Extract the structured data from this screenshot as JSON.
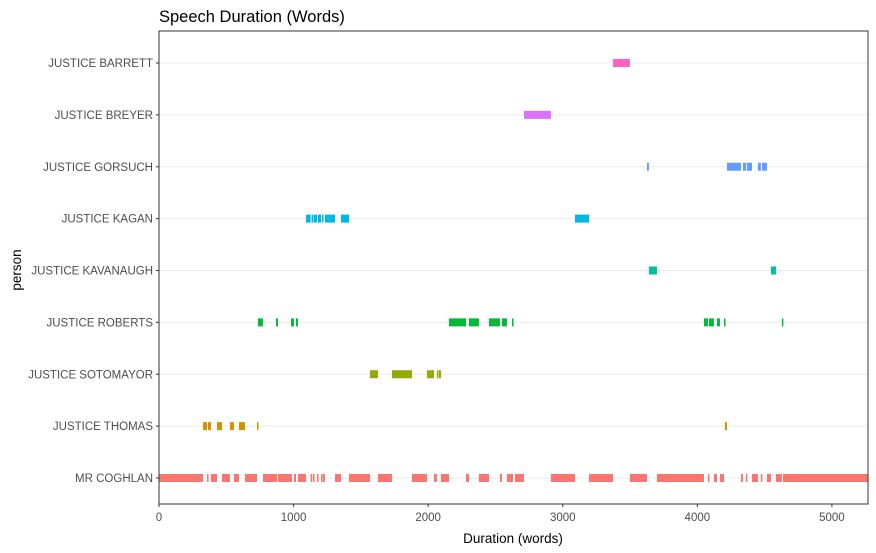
{
  "chart_data": {
    "type": "timeline",
    "title": "Speech Duration (Words)",
    "xlabel": "Duration (words)",
    "ylabel": "person",
    "xlim": [
      0,
      5268
    ],
    "xticks": [
      0,
      1000,
      2000,
      3000,
      4000,
      5000
    ],
    "xtick_labels": [
      "0",
      "1000",
      "2000",
      "3000",
      "4000",
      "5000"
    ],
    "grid": true,
    "legend": "none",
    "series": [
      {
        "name": "JUSTICE BARRETT",
        "color": "#FF61C3",
        "segments": [
          [
            3373,
            3499
          ]
        ]
      },
      {
        "name": "JUSTICE BREYER",
        "color": "#DB72FB",
        "segments": [
          [
            2712,
            2912
          ]
        ]
      },
      {
        "name": "JUSTICE GORSUCH",
        "color": "#619CFF",
        "segments": [
          [
            3626,
            3640
          ],
          [
            4220,
            4324
          ],
          [
            4339,
            4361
          ],
          [
            4368,
            4406
          ],
          [
            4450,
            4472
          ],
          [
            4480,
            4517
          ]
        ]
      },
      {
        "name": "JUSTICE KAGAN",
        "color": "#00B9E3",
        "segments": [
          [
            1092,
            1127
          ],
          [
            1134,
            1144
          ],
          [
            1149,
            1174
          ],
          [
            1181,
            1204
          ],
          [
            1211,
            1218
          ],
          [
            1233,
            1308
          ],
          [
            1352,
            1412
          ],
          [
            3091,
            3195
          ]
        ]
      },
      {
        "name": "JUSTICE KAVANAUGH",
        "color": "#00C19F",
        "segments": [
          [
            3640,
            3700
          ],
          [
            4547,
            4584
          ]
        ]
      },
      {
        "name": "JUSTICE ROBERTS",
        "color": "#00BA38",
        "segments": [
          [
            735,
            772
          ],
          [
            869,
            884
          ],
          [
            981,
            1003
          ],
          [
            1018,
            1033
          ],
          [
            2155,
            2281
          ],
          [
            2303,
            2377
          ],
          [
            2452,
            2533
          ],
          [
            2548,
            2585
          ],
          [
            2623,
            2630
          ],
          [
            4049,
            4079
          ],
          [
            4086,
            4123
          ],
          [
            4146,
            4168
          ],
          [
            4198,
            4205
          ],
          [
            4628,
            4636
          ]
        ]
      },
      {
        "name": "JUSTICE SOTOMAYOR",
        "color": "#93AA00",
        "segments": [
          [
            1568,
            1627
          ],
          [
            1731,
            1880
          ],
          [
            1991,
            2043
          ],
          [
            2065,
            2073
          ],
          [
            2080,
            2095
          ]
        ]
      },
      {
        "name": "JUSTICE THOMAS",
        "color": "#D39200",
        "segments": [
          [
            327,
            357
          ],
          [
            364,
            386
          ],
          [
            431,
            468
          ],
          [
            527,
            557
          ],
          [
            594,
            639
          ],
          [
            728,
            736
          ],
          [
            4205,
            4220
          ]
        ]
      },
      {
        "name": "MR COGHLAN",
        "color": "#F8766D",
        "segments": [
          [
            0,
            327
          ],
          [
            357,
            364
          ],
          [
            386,
            431
          ],
          [
            468,
            527
          ],
          [
            557,
            594
          ],
          [
            639,
            728
          ],
          [
            773,
            877
          ],
          [
            884,
            988
          ],
          [
            1003,
            1018
          ],
          [
            1033,
            1092
          ],
          [
            1127,
            1134
          ],
          [
            1144,
            1149
          ],
          [
            1174,
            1181
          ],
          [
            1204,
            1211
          ],
          [
            1218,
            1233
          ],
          [
            1308,
            1352
          ],
          [
            1412,
            1568
          ],
          [
            1627,
            1731
          ],
          [
            1880,
            1991
          ],
          [
            2043,
            2065
          ],
          [
            2095,
            2155
          ],
          [
            2281,
            2303
          ],
          [
            2377,
            2452
          ],
          [
            2533,
            2548
          ],
          [
            2585,
            2630
          ],
          [
            2645,
            2712
          ],
          [
            2912,
            3091
          ],
          [
            3195,
            3373
          ],
          [
            3499,
            3626
          ],
          [
            3700,
            4049
          ],
          [
            4079,
            4086
          ],
          [
            4123,
            4146
          ],
          [
            4168,
            4198
          ],
          [
            4324,
            4339
          ],
          [
            4361,
            4368
          ],
          [
            4406,
            4450
          ],
          [
            4472,
            4480
          ],
          [
            4517,
            4547
          ],
          [
            4584,
            4628
          ],
          [
            4636,
            5268
          ]
        ]
      }
    ]
  }
}
